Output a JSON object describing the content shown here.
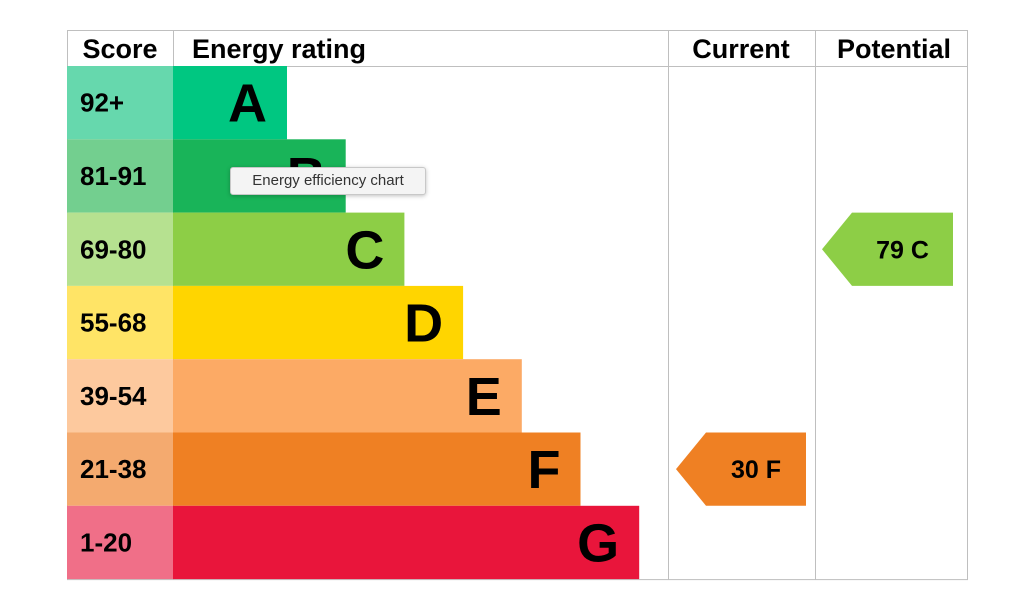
{
  "headers": {
    "score": "Score",
    "energy_rating": "Energy rating",
    "current": "Current",
    "potential": "Potential"
  },
  "tooltip": "Energy efficiency chart",
  "chart_data": {
    "type": "bar",
    "title": "",
    "categories": [
      "A",
      "B",
      "C",
      "D",
      "E",
      "F",
      "G"
    ],
    "score_ranges": [
      "92+",
      "81-91",
      "69-80",
      "55-68",
      "39-54",
      "21-38",
      "1-20"
    ],
    "band_colors": [
      "#00c781",
      "#19b459",
      "#8dce46",
      "#ffd500",
      "#fcaa65",
      "#ef8023",
      "#e9153b"
    ],
    "score_cell_colors": [
      "#66d8ad",
      "#73cf8f",
      "#b6e190",
      "#ffe466",
      "#fdc99e",
      "#f4aa6f",
      "#f06f88"
    ],
    "current": {
      "value": 30,
      "band": "F",
      "label": "30 F",
      "color": "#ef8023"
    },
    "potential": {
      "value": 79,
      "band": "C",
      "label": "79 C",
      "color": "#8dce46"
    }
  }
}
